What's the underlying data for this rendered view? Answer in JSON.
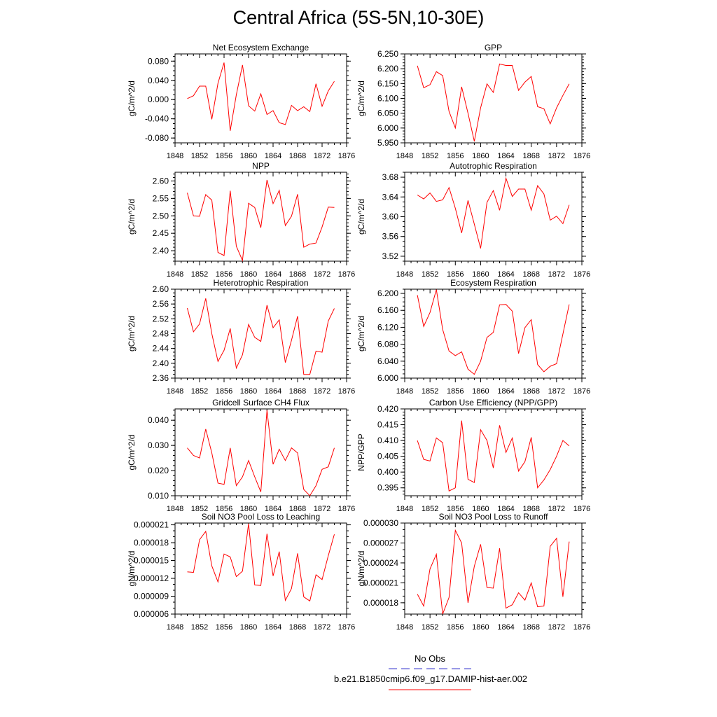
{
  "page_title": "Central Africa (5S-5N,10-30E)",
  "legend": [
    {
      "label": "No Obs",
      "color": "#3333cc",
      "dash": true
    },
    {
      "label": "b.e21.B1850cmip6.f09_g17.DAMIP-hist-aer.002",
      "color": "#ff0000",
      "dash": false
    }
  ],
  "chart_data": [
    {
      "type": "line",
      "title": "Net Ecosystem Exchange",
      "ylabel": "gC/m^2/d",
      "xlim": [
        1848,
        1876
      ],
      "x_ticks": [
        "1848",
        "1852",
        "1856",
        "1860",
        "1864",
        "1868",
        "1872",
        "1876"
      ],
      "ylim": [
        -0.09,
        0.095
      ],
      "y_ticks": [
        "-0.080",
        "-0.040",
        "0.000",
        "0.040",
        "0.080"
      ],
      "y_tick_values": [
        -0.08,
        -0.04,
        0.0,
        0.04,
        0.08
      ],
      "y_minor_step": 0.01,
      "series": [
        {
          "color": "#ff0000",
          "x": [
            1850,
            1851,
            1852,
            1853,
            1854,
            1855,
            1856,
            1857,
            1858,
            1859,
            1860,
            1861,
            1862,
            1863,
            1864,
            1865,
            1866,
            1867,
            1868,
            1869,
            1870,
            1871,
            1872,
            1873,
            1874
          ],
          "y": [
            0.002,
            0.008,
            0.028,
            0.028,
            -0.041,
            0.034,
            0.077,
            -0.065,
            0.01,
            0.072,
            -0.013,
            -0.024,
            0.012,
            -0.031,
            -0.023,
            -0.048,
            -0.052,
            -0.012,
            -0.023,
            -0.015,
            -0.025,
            0.033,
            -0.014,
            0.018,
            0.038
          ]
        }
      ]
    },
    {
      "type": "line",
      "title": "GPP",
      "ylabel": "gC/m^2/d",
      "xlim": [
        1848,
        1876
      ],
      "x_ticks": [
        "1848",
        "1852",
        "1856",
        "1860",
        "1864",
        "1868",
        "1872",
        "1876"
      ],
      "ylim": [
        5.95,
        6.25
      ],
      "y_ticks": [
        "5.950",
        "6.000",
        "6.050",
        "6.100",
        "6.150",
        "6.200",
        "6.250"
      ],
      "y_tick_values": [
        5.95,
        6.0,
        6.05,
        6.1,
        6.15,
        6.2,
        6.25
      ],
      "y_minor_step": 0.01,
      "series": [
        {
          "color": "#ff0000",
          "x": [
            1850,
            1851,
            1852,
            1853,
            1854,
            1855,
            1856,
            1857,
            1858,
            1859,
            1860,
            1861,
            1862,
            1863,
            1864,
            1865,
            1866,
            1867,
            1868,
            1869,
            1870,
            1871,
            1872,
            1873,
            1874
          ],
          "y": [
            6.21,
            6.136,
            6.146,
            6.19,
            6.177,
            6.056,
            6.0,
            6.139,
            6.05,
            5.955,
            6.068,
            6.149,
            6.12,
            6.216,
            6.211,
            6.211,
            6.127,
            6.155,
            6.174,
            6.072,
            6.065,
            6.014,
            6.068,
            6.11,
            6.149
          ]
        }
      ]
    },
    {
      "type": "line",
      "title": "NPP",
      "ylabel": "gC/m^2/d",
      "xlim": [
        1848,
        1876
      ],
      "x_ticks": [
        "1848",
        "1852",
        "1856",
        "1860",
        "1864",
        "1868",
        "1872",
        "1876"
      ],
      "ylim": [
        2.37,
        2.625
      ],
      "y_ticks": [
        "2.40",
        "2.45",
        "2.50",
        "2.55",
        "2.60"
      ],
      "y_tick_values": [
        2.4,
        2.45,
        2.5,
        2.55,
        2.6
      ],
      "y_minor_step": 0.01,
      "series": [
        {
          "color": "#ff0000",
          "x": [
            1850,
            1851,
            1852,
            1853,
            1854,
            1855,
            1856,
            1857,
            1858,
            1859,
            1860,
            1861,
            1862,
            1863,
            1864,
            1865,
            1866,
            1867,
            1868,
            1869,
            1870,
            1871,
            1872,
            1873,
            1874
          ],
          "y": [
            2.566,
            2.5,
            2.499,
            2.561,
            2.545,
            2.395,
            2.386,
            2.572,
            2.413,
            2.372,
            2.536,
            2.524,
            2.466,
            2.603,
            2.535,
            2.573,
            2.472,
            2.499,
            2.562,
            2.41,
            2.419,
            2.422,
            2.468,
            2.525,
            2.524
          ]
        }
      ]
    },
    {
      "type": "line",
      "title": "Autotrophic Respiration",
      "ylabel": "gC/m^2/d",
      "xlim": [
        1848,
        1876
      ],
      "x_ticks": [
        "1848",
        "1852",
        "1856",
        "1860",
        "1864",
        "1868",
        "1872",
        "1876"
      ],
      "ylim": [
        3.51,
        3.69
      ],
      "y_ticks": [
        "3.52",
        "3.56",
        "3.60",
        "3.64",
        "3.68"
      ],
      "y_tick_values": [
        3.52,
        3.56,
        3.6,
        3.64,
        3.68
      ],
      "y_minor_step": 0.01,
      "series": [
        {
          "color": "#ff0000",
          "x": [
            1850,
            1851,
            1852,
            1853,
            1854,
            1855,
            1856,
            1857,
            1858,
            1859,
            1860,
            1861,
            1862,
            1863,
            1864,
            1865,
            1866,
            1867,
            1868,
            1869,
            1870,
            1871,
            1872,
            1873,
            1874
          ],
          "y": [
            3.644,
            3.636,
            3.648,
            3.631,
            3.634,
            3.659,
            3.617,
            3.567,
            3.633,
            3.585,
            3.536,
            3.629,
            3.653,
            3.613,
            3.678,
            3.641,
            3.656,
            3.656,
            3.613,
            3.663,
            3.646,
            3.593,
            3.601,
            3.586,
            3.624
          ]
        }
      ]
    },
    {
      "type": "line",
      "title": "Heterotrophic Respiration",
      "ylabel": "gC/m^2/d",
      "xlim": [
        1848,
        1876
      ],
      "x_ticks": [
        "1848",
        "1852",
        "1856",
        "1860",
        "1864",
        "1868",
        "1872",
        "1876"
      ],
      "ylim": [
        2.36,
        2.6
      ],
      "y_ticks": [
        "2.36",
        "2.40",
        "2.44",
        "2.48",
        "2.52",
        "2.56",
        "2.60"
      ],
      "y_tick_values": [
        2.36,
        2.4,
        2.44,
        2.48,
        2.52,
        2.56,
        2.6
      ],
      "y_minor_step": 0.01,
      "series": [
        {
          "color": "#ff0000",
          "x": [
            1850,
            1851,
            1852,
            1853,
            1854,
            1855,
            1856,
            1857,
            1858,
            1859,
            1860,
            1861,
            1862,
            1863,
            1864,
            1865,
            1866,
            1867,
            1868,
            1869,
            1870,
            1871,
            1872,
            1873,
            1874
          ],
          "y": [
            2.549,
            2.485,
            2.506,
            2.575,
            2.48,
            2.405,
            2.435,
            2.494,
            2.387,
            2.423,
            2.505,
            2.47,
            2.459,
            2.557,
            2.496,
            2.517,
            2.402,
            2.462,
            2.527,
            2.37,
            2.37,
            2.433,
            2.43,
            2.514,
            2.548
          ]
        }
      ]
    },
    {
      "type": "line",
      "title": "Ecosystem Respiration",
      "ylabel": "gC/m^2/d",
      "xlim": [
        1848,
        1876
      ],
      "x_ticks": [
        "1848",
        "1852",
        "1856",
        "1860",
        "1864",
        "1868",
        "1872",
        "1876"
      ],
      "ylim": [
        6.0,
        6.21
      ],
      "y_ticks": [
        "6.000",
        "6.040",
        "6.080",
        "6.120",
        "6.160",
        "6.200"
      ],
      "y_tick_values": [
        6.0,
        6.04,
        6.08,
        6.12,
        6.16,
        6.2
      ],
      "y_minor_step": 0.01,
      "series": [
        {
          "color": "#ff0000",
          "x": [
            1850,
            1851,
            1852,
            1853,
            1854,
            1855,
            1856,
            1857,
            1858,
            1859,
            1860,
            1861,
            1862,
            1863,
            1864,
            1865,
            1866,
            1867,
            1868,
            1869,
            1870,
            1871,
            1872,
            1873,
            1874
          ],
          "y": [
            6.196,
            6.122,
            6.155,
            6.209,
            6.115,
            6.064,
            6.053,
            6.062,
            6.021,
            6.009,
            6.04,
            6.096,
            6.108,
            6.173,
            6.174,
            6.158,
            6.058,
            6.119,
            6.138,
            6.032,
            6.015,
            6.028,
            6.034,
            6.104,
            6.174
          ]
        }
      ]
    },
    {
      "type": "line",
      "title": "Gridcell Surface CH4 Flux",
      "ylabel": "gC/m^2/d",
      "xlim": [
        1848,
        1876
      ],
      "x_ticks": [
        "1848",
        "1852",
        "1856",
        "1860",
        "1864",
        "1868",
        "1872",
        "1876"
      ],
      "ylim": [
        0.01,
        0.0445
      ],
      "y_ticks": [
        "0.010",
        "0.020",
        "0.030",
        "0.040"
      ],
      "y_tick_values": [
        0.01,
        0.02,
        0.03,
        0.04
      ],
      "y_minor_step": 0.002,
      "series": [
        {
          "color": "#ff0000",
          "x": [
            1850,
            1851,
            1852,
            1853,
            1854,
            1855,
            1856,
            1857,
            1858,
            1859,
            1860,
            1861,
            1862,
            1863,
            1864,
            1865,
            1866,
            1867,
            1868,
            1869,
            1870,
            1871,
            1872,
            1873,
            1874
          ],
          "y": [
            0.029,
            0.026,
            0.025,
            0.0365,
            0.027,
            0.015,
            0.0145,
            0.029,
            0.014,
            0.0175,
            0.024,
            0.0175,
            0.0115,
            0.044,
            0.0225,
            0.0285,
            0.024,
            0.029,
            0.027,
            0.0125,
            0.01,
            0.014,
            0.0205,
            0.0215,
            0.029
          ]
        }
      ]
    },
    {
      "type": "line",
      "title": "Carbon Use Efficiency (NPP/GPP)",
      "ylabel": "NPP/GPP",
      "xlim": [
        1848,
        1876
      ],
      "x_ticks": [
        "1848",
        "1852",
        "1856",
        "1860",
        "1864",
        "1868",
        "1872",
        "1876"
      ],
      "ylim": [
        0.3925,
        0.42
      ],
      "y_ticks": [
        "0.395",
        "0.400",
        "0.405",
        "0.410",
        "0.415",
        "0.420"
      ],
      "y_tick_values": [
        0.395,
        0.4,
        0.405,
        0.41,
        0.415,
        0.42
      ],
      "y_minor_step": 0.001,
      "series": [
        {
          "color": "#ff0000",
          "x": [
            1850,
            1851,
            1852,
            1853,
            1854,
            1855,
            1856,
            1857,
            1858,
            1859,
            1860,
            1861,
            1862,
            1863,
            1864,
            1865,
            1866,
            1867,
            1868,
            1869,
            1870,
            1871,
            1872,
            1873,
            1874
          ],
          "y": [
            0.41,
            0.404,
            0.4035,
            0.4108,
            0.4093,
            0.394,
            0.395,
            0.4163,
            0.3977,
            0.3967,
            0.4134,
            0.41,
            0.4013,
            0.4148,
            0.4062,
            0.4108,
            0.4003,
            0.4033,
            0.411,
            0.395,
            0.3975,
            0.4008,
            0.405,
            0.41,
            0.4083
          ]
        }
      ]
    },
    {
      "type": "line",
      "title": "Soil NO3 Pool Loss to Leaching",
      "ylabel": "gN/m^2/d",
      "xlim": [
        1848,
        1876
      ],
      "x_ticks": [
        "1848",
        "1852",
        "1856",
        "1860",
        "1864",
        "1868",
        "1872",
        "1876"
      ],
      "ylim": [
        6e-06,
        2.13e-05
      ],
      "y_ticks": [
        "0.000006",
        "0.000009",
        "0.000012",
        "0.000015",
        "0.000018",
        "0.000021"
      ],
      "y_tick_values": [
        6e-06,
        9e-06,
        1.2e-05,
        1.5e-05,
        1.8e-05,
        2.1e-05
      ],
      "y_minor_step": 1e-06,
      "series": [
        {
          "color": "#ff0000",
          "x": [
            1850,
            1851,
            1852,
            1853,
            1854,
            1855,
            1856,
            1857,
            1858,
            1859,
            1860,
            1861,
            1862,
            1863,
            1864,
            1865,
            1866,
            1867,
            1868,
            1869,
            1870,
            1871,
            1872,
            1873,
            1874
          ],
          "y": [
            1.31e-05,
            1.3e-05,
            1.85e-05,
            1.99e-05,
            1.41e-05,
            1.14e-05,
            1.61e-05,
            1.56e-05,
            1.23e-05,
            1.32e-05,
            2.12e-05,
            1.09e-05,
            1.08e-05,
            1.95e-05,
            1.24e-05,
            1.65e-05,
            8.3e-06,
            1.03e-05,
            1.62e-05,
            8.9e-06,
            8.2e-06,
            1.26e-05,
            1.18e-05,
            1.58e-05,
            1.94e-05
          ]
        }
      ]
    },
    {
      "type": "line",
      "title": "Soil NO3 Pool Loss to Runoff",
      "ylabel": "gN/m^2/d",
      "xlim": [
        1848,
        1876
      ],
      "x_ticks": [
        "1848",
        "1852",
        "1856",
        "1860",
        "1864",
        "1868",
        "1872",
        "1876"
      ],
      "ylim": [
        1.63e-05,
        3e-05
      ],
      "y_ticks": [
        "0.000018",
        "0.000021",
        "0.000024",
        "0.000027",
        "0.000030"
      ],
      "y_tick_values": [
        1.8e-05,
        2.1e-05,
        2.4e-05,
        2.7e-05,
        3e-05
      ],
      "y_minor_step": 1e-06,
      "series": [
        {
          "color": "#ff0000",
          "x": [
            1850,
            1851,
            1852,
            1853,
            1854,
            1855,
            1856,
            1857,
            1858,
            1859,
            1860,
            1861,
            1862,
            1863,
            1864,
            1865,
            1866,
            1867,
            1868,
            1869,
            1870,
            1871,
            1872,
            1873,
            1874
          ],
          "y": [
            1.93e-05,
            1.75e-05,
            2.31e-05,
            2.53e-05,
            1.63e-05,
            1.88e-05,
            2.89e-05,
            2.7e-05,
            1.8e-05,
            2.35e-05,
            2.68e-05,
            2.03e-05,
            2.02e-05,
            2.62e-05,
            1.72e-05,
            1.77e-05,
            1.95e-05,
            1.84e-05,
            2.1e-05,
            1.74e-05,
            1.75e-05,
            2.65e-05,
            2.77e-05,
            1.89e-05,
            2.72e-05
          ]
        }
      ]
    }
  ]
}
